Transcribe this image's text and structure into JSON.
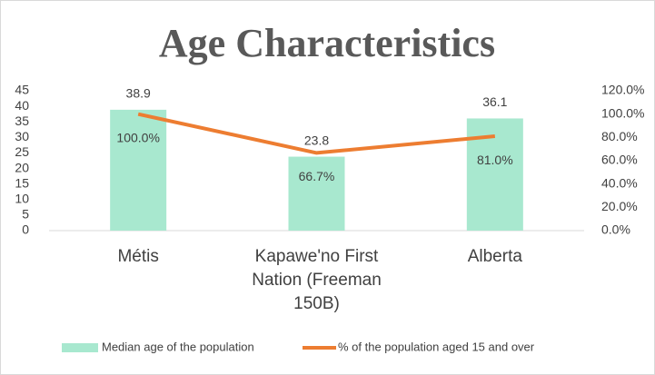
{
  "chart_data": {
    "type": "bar-line",
    "title": "Age Characteristics",
    "categories": [
      "Métis",
      "Kapawe'no First Nation (Freeman 150B)",
      "Alberta"
    ],
    "series": [
      {
        "name": "Median age of the population",
        "type": "bar",
        "color": "#a8e8cf",
        "values": [
          38.9,
          23.8,
          36.1
        ]
      },
      {
        "name": "% of the population aged 15 and over",
        "type": "line",
        "axis": "y2",
        "color": "#ed7d31",
        "values": [
          100.0,
          66.7,
          81.0
        ],
        "value_labels": [
          "100.0%",
          "66.7%",
          "81.0%"
        ]
      }
    ],
    "ylim": [
      0,
      45
    ],
    "yticks": [
      0,
      5,
      10,
      15,
      20,
      25,
      30,
      35,
      40,
      45
    ],
    "y2lim": [
      0,
      120
    ],
    "y2ticks": [
      {
        "value": 0,
        "label": "0.0%"
      },
      {
        "value": 20,
        "label": "20.0%"
      },
      {
        "value": 40,
        "label": "40.0%"
      },
      {
        "value": 60,
        "label": "60.0%"
      },
      {
        "value": 80,
        "label": "80.0%"
      },
      {
        "value": 100,
        "label": "100.0%"
      },
      {
        "value": 120,
        "label": "120.0%"
      }
    ],
    "grid": false,
    "legend": "bottom"
  }
}
